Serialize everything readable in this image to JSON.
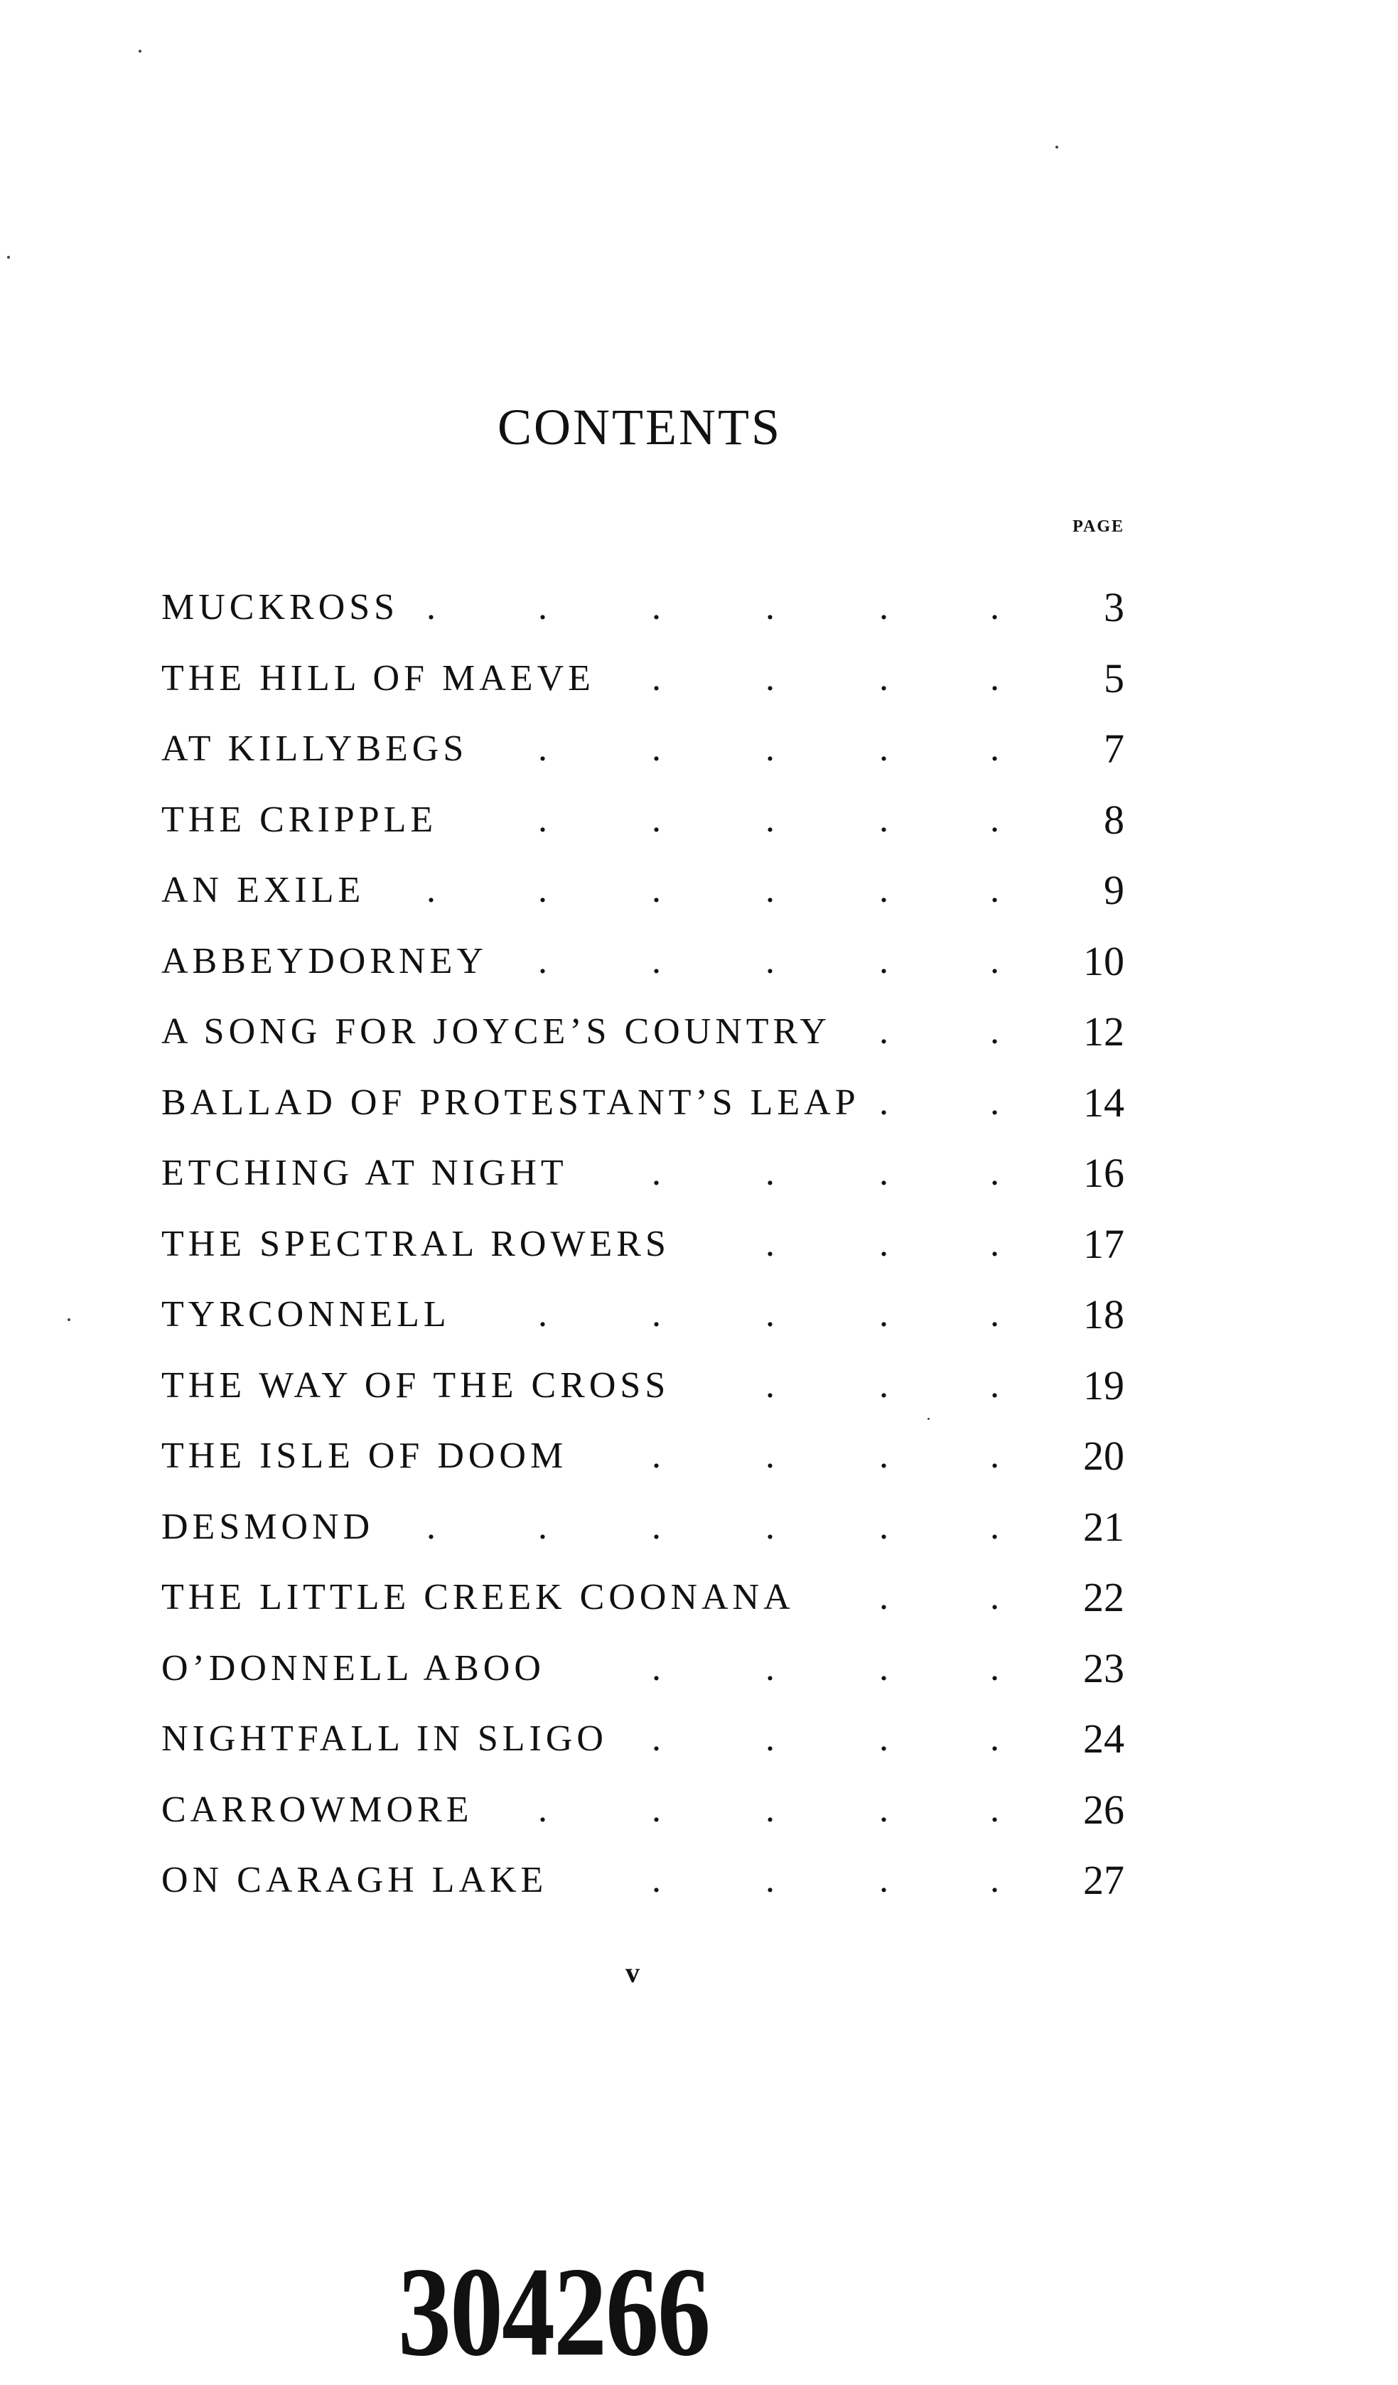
{
  "title": "CONTENTS",
  "page_column_label": "PAGE",
  "entries": [
    {
      "title": "MUCKROSS",
      "page": "3"
    },
    {
      "title": "THE HILL OF MAEVE",
      "page": "5"
    },
    {
      "title": "AT KILLYBEGS",
      "page": "7"
    },
    {
      "title": "THE CRIPPLE",
      "page": "8"
    },
    {
      "title": "AN EXILE",
      "page": "9"
    },
    {
      "title": "ABBEYDORNEY",
      "page": "10"
    },
    {
      "title": "A SONG FOR JOYCE’S COUNTRY",
      "page": "12"
    },
    {
      "title": "BALLAD OF PROTESTANT’S LEAP",
      "page": "14"
    },
    {
      "title": "ETCHING AT NIGHT",
      "page": "16"
    },
    {
      "title": "THE SPECTRAL ROWERS",
      "page": "17"
    },
    {
      "title": "TYRCONNELL",
      "page": "18"
    },
    {
      "title": "THE WAY OF THE CROSS",
      "page": "19"
    },
    {
      "title": "THE ISLE OF DOOM",
      "page": "20"
    },
    {
      "title": "DESMOND",
      "page": "21"
    },
    {
      "title": "THE LITTLE CREEK COONANA",
      "page": "22"
    },
    {
      "title": "O’DONNELL ABOO",
      "page": "23"
    },
    {
      "title": "NIGHTFALL IN SLIGO",
      "page": "24"
    },
    {
      "title": "CARROWMORE",
      "page": "26"
    },
    {
      "title": "ON CARAGH LAKE",
      "page": "27"
    }
  ],
  "folio": "v",
  "library_stamp": "304266"
}
